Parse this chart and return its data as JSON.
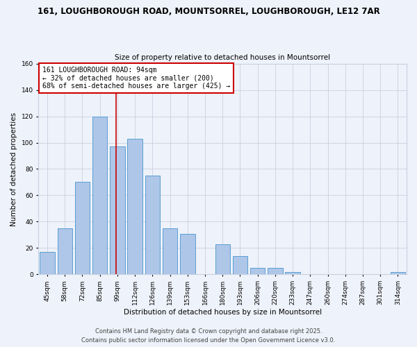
{
  "title_line1": "161, LOUGHBOROUGH ROAD, MOUNTSORREL, LOUGHBOROUGH, LE12 7AR",
  "title_line2": "Size of property relative to detached houses in Mountsorrel",
  "xlabel": "Distribution of detached houses by size in Mountsorrel",
  "ylabel": "Number of detached properties",
  "categories": [
    "45sqm",
    "58sqm",
    "72sqm",
    "85sqm",
    "99sqm",
    "112sqm",
    "126sqm",
    "139sqm",
    "153sqm",
    "166sqm",
    "180sqm",
    "193sqm",
    "206sqm",
    "220sqm",
    "233sqm",
    "247sqm",
    "260sqm",
    "274sqm",
    "287sqm",
    "301sqm",
    "314sqm"
  ],
  "values": [
    17,
    35,
    70,
    120,
    97,
    103,
    75,
    35,
    31,
    0,
    23,
    14,
    5,
    5,
    2,
    0,
    0,
    0,
    0,
    0,
    2
  ],
  "bar_color": "#aec6e8",
  "bar_edge_color": "#5a9fd4",
  "background_color": "#eef2fa",
  "grid_color": "#c8d0e0",
  "vline_color": "#cc0000",
  "annotation_text": "161 LOUGHBOROUGH ROAD: 94sqm\n← 32% of detached houses are smaller (200)\n68% of semi-detached houses are larger (425) →",
  "annotation_box_color": "#ffffff",
  "annotation_box_edge_color": "#cc0000",
  "ylim": [
    0,
    160
  ],
  "yticks": [
    0,
    20,
    40,
    60,
    80,
    100,
    120,
    140,
    160
  ],
  "footer_line1": "Contains HM Land Registry data © Crown copyright and database right 2025.",
  "footer_line2": "Contains public sector information licensed under the Open Government Licence v3.0.",
  "title_fontsize": 8.5,
  "subtitle_fontsize": 7.5,
  "axis_label_fontsize": 7.5,
  "tick_fontsize": 6.5,
  "annotation_fontsize": 7,
  "footer_fontsize": 6
}
